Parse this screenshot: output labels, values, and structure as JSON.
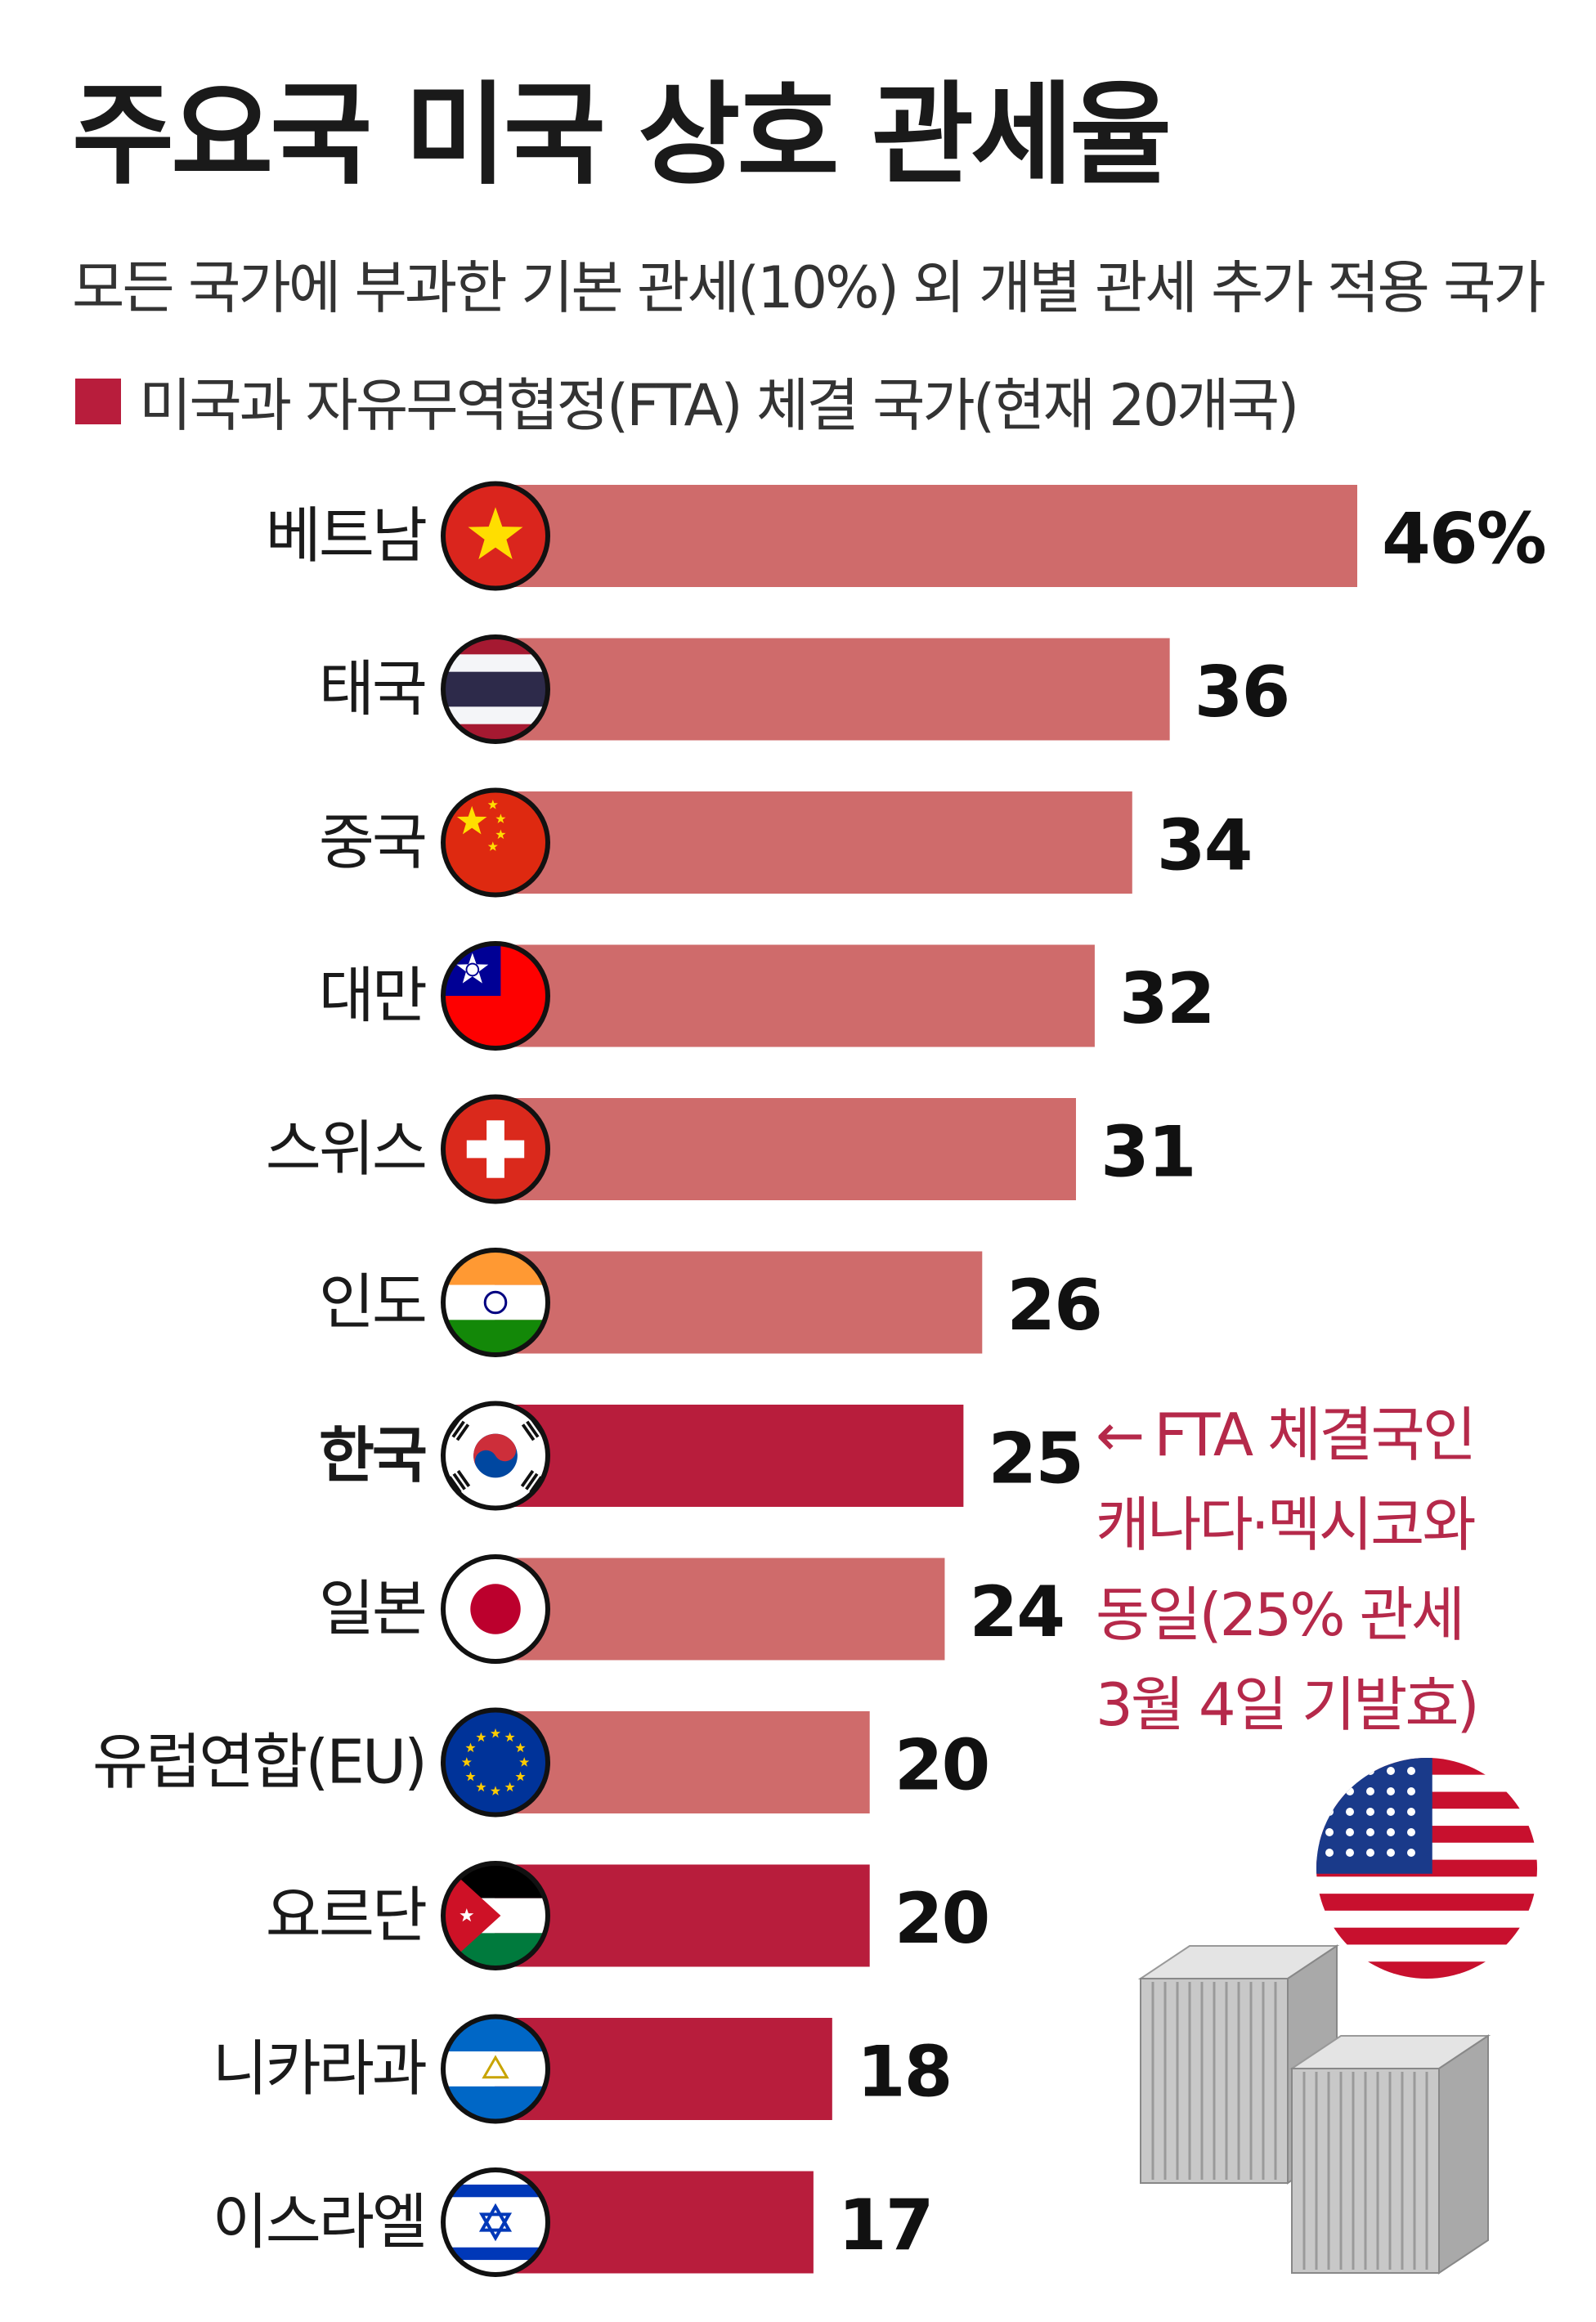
{
  "title": "주요국 미국 상호 관세율",
  "subtitle": "모든 국가에 부과한 기본 관세(10%) 외 개별 관세 추가 적용 국가",
  "legend": {
    "label": "미국과 자유무역협정(FTA) 체결 국가(현재 20개국)"
  },
  "colors": {
    "fta": "#b81d3c",
    "non_fta": "#cf6b6b",
    "annotation": "#b5294a"
  },
  "annotation": {
    "arrow": "←",
    "lines": [
      "FTA 체결국인",
      "캐나다·멕시코와",
      "동일(25% 관세",
      "3월 4일 기발효)"
    ]
  },
  "chart_data": {
    "type": "bar",
    "orientation": "horizontal",
    "title": "주요국 미국 상호 관세율",
    "unit": "%",
    "xlim": [
      0,
      46
    ],
    "categories": [
      "베트남",
      "태국",
      "중국",
      "대만",
      "스위스",
      "인도",
      "한국",
      "일본",
      "유럽연합(EU)",
      "요르단",
      "니카라과",
      "이스라엘"
    ],
    "values": [
      46,
      36,
      34,
      32,
      31,
      26,
      25,
      24,
      20,
      20,
      18,
      17
    ],
    "value_labels": [
      "46%",
      "36",
      "34",
      "32",
      "31",
      "26",
      "25",
      "24",
      "20",
      "20",
      "18",
      "17"
    ],
    "fta": [
      false,
      false,
      false,
      false,
      false,
      false,
      true,
      false,
      false,
      true,
      true,
      true
    ],
    "flags": [
      "vietnam-flag",
      "thailand-flag",
      "china-flag",
      "taiwan-flag",
      "switzerland-flag",
      "india-flag",
      "korea-flag",
      "japan-flag",
      "eu-flag",
      "jordan-flag",
      "nicaragua-flag",
      "israel-flag"
    ],
    "emphasis": "한국"
  }
}
